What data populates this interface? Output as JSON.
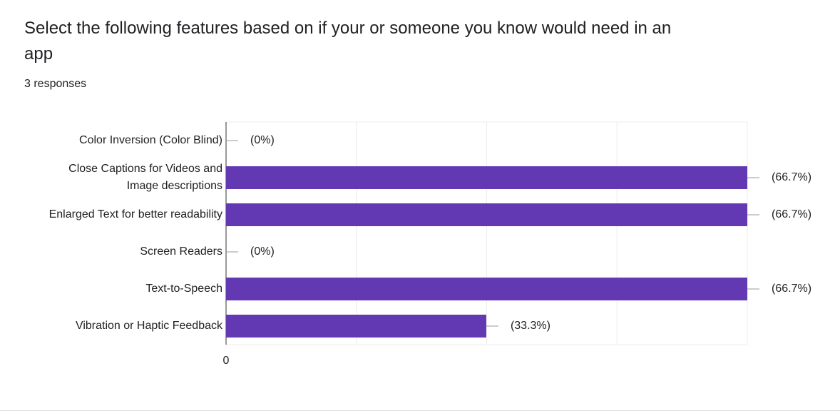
{
  "chart_data": {
    "type": "hbar",
    "title": "Select the following features based on if your or someone you know would need in an app",
    "subtitle": "3 responses",
    "categories": [
      "Color Inversion (Color Blind)",
      "Close Captions for Videos and Image descriptions",
      "Enlarged Text for better readability",
      "Screen Readers",
      "Text-to-Speech",
      "Vibration or Haptic Feedback"
    ],
    "values": [
      0,
      66.7,
      66.7,
      0,
      66.7,
      33.3
    ],
    "value_labels": [
      "(0%)",
      "(66.7%)",
      "(66.7%)",
      "(0%)",
      "(66.7%)",
      "(33.3%)"
    ],
    "color": "#6239b3",
    "xlim": [
      0,
      66.7
    ],
    "xticks": [
      0
    ],
    "grid": true
  }
}
